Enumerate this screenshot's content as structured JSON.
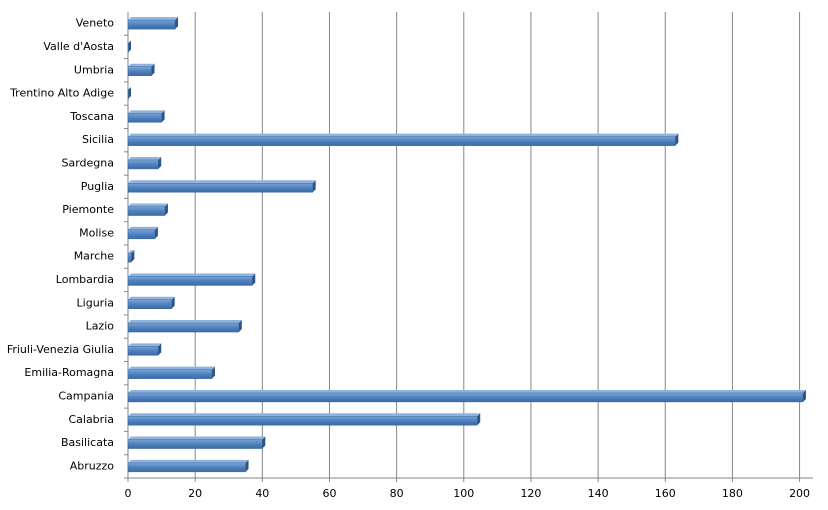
{
  "chart_data": {
    "type": "hbar",
    "categories": [
      "Abruzzo",
      "Basilicata",
      "Calabria",
      "Campania",
      "Emilia-Romagna",
      "Friuli-Venezia Giulia",
      "Lazio",
      "Liguria",
      "Lombardia",
      "Marche",
      "Molise",
      "Piemonte",
      "Puglia",
      "Sardegna",
      "Sicilia",
      "Toscana",
      "Trentino Alto Adige",
      "Umbria",
      "Valle d'Aosta",
      "Veneto"
    ],
    "values": [
      35,
      40,
      104,
      201,
      25,
      9,
      33,
      13,
      37,
      1,
      8,
      11,
      55,
      9,
      163,
      10,
      0,
      7,
      0,
      14
    ],
    "color": "#4f81bd",
    "xlim": [
      0,
      204
    ],
    "xticks": [
      0,
      20,
      40,
      60,
      80,
      100,
      120,
      140,
      160,
      180,
      200
    ],
    "grid": true
  }
}
